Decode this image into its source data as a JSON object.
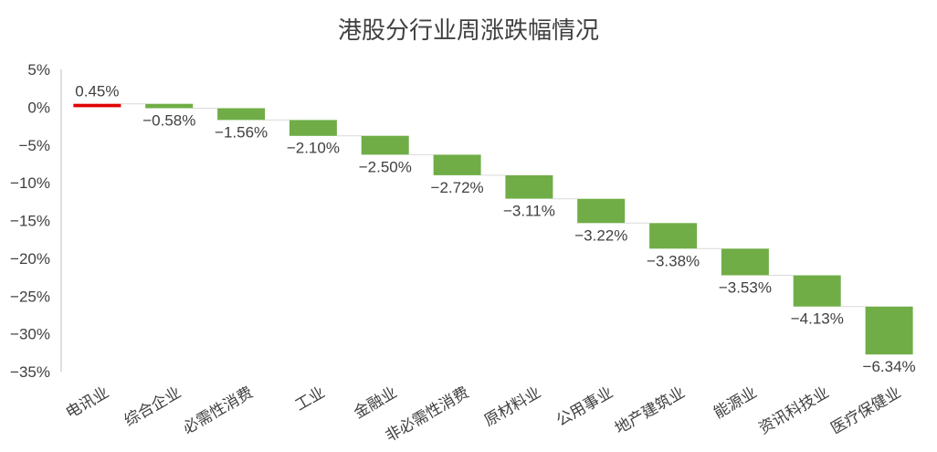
{
  "chart_data": {
    "type": "bar",
    "subtype": "waterfall",
    "title": "港股分行业周涨跌幅情况",
    "xlabel": "",
    "ylabel": "",
    "ylim": [
      -35,
      5
    ],
    "yticks": [
      5,
      0,
      -5,
      -10,
      -15,
      -20,
      -25,
      -30,
      -35
    ],
    "ytick_labels": [
      "5%",
      "0%",
      "−5%",
      "−10%",
      "−15%",
      "−20%",
      "−25%",
      "−30%",
      "−35%"
    ],
    "grid": false,
    "legend": "none",
    "categories": [
      "电讯业",
      "综合企业",
      "必需性消费",
      "工业",
      "金融业",
      "非必需性消费",
      "原材料业",
      "公用事业",
      "地产建筑业",
      "能源业",
      "资讯科技业",
      "医疗保健业"
    ],
    "values": [
      0.45,
      -0.58,
      -1.56,
      -2.1,
      -2.5,
      -2.72,
      -3.11,
      -3.22,
      -3.38,
      -3.53,
      -4.13,
      -6.34
    ],
    "value_labels": [
      "0.45%",
      "−0.58%",
      "−1.56%",
      "−2.10%",
      "−2.50%",
      "−2.72%",
      "−3.11%",
      "−3.22%",
      "−3.38%",
      "−3.53%",
      "−4.13%",
      "−6.34%"
    ],
    "colors": {
      "positive": "#e00000",
      "negative": "#70ad47",
      "connector": "#d9d9d9",
      "axis": "#bfbfbf"
    }
  }
}
